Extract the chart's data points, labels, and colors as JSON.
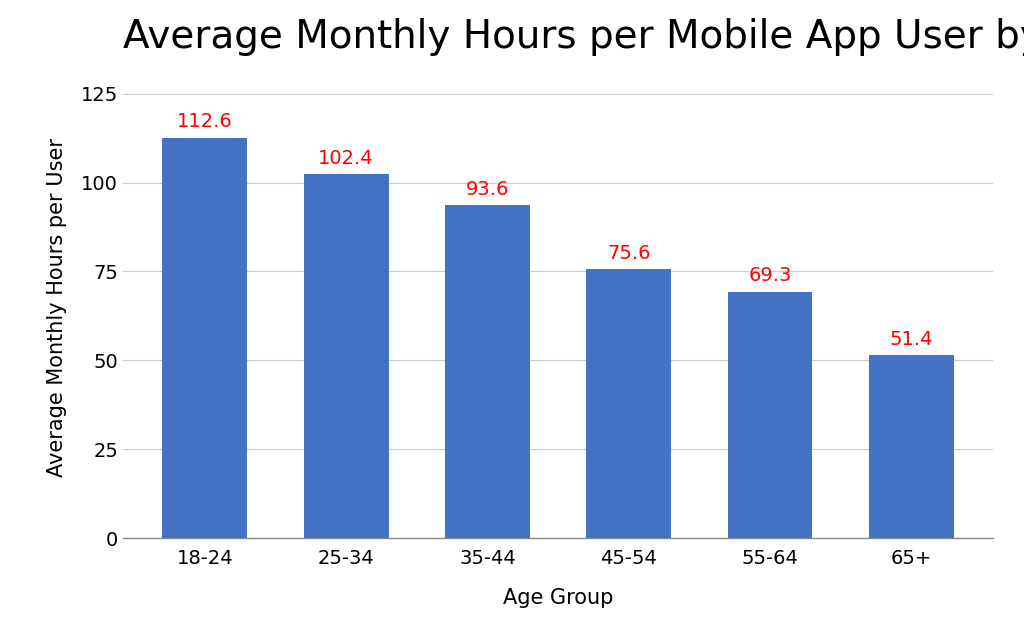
{
  "title": "Average Monthly Hours per Mobile App User by Age",
  "xlabel": "Age Group",
  "ylabel": "Average Monthly Hours per User",
  "categories": [
    "18-24",
    "25-34",
    "35-44",
    "45-54",
    "55-64",
    "65+"
  ],
  "values": [
    112.6,
    102.4,
    93.6,
    75.6,
    69.3,
    51.4
  ],
  "bar_color": "#4472C4",
  "label_color": "#FF0000",
  "background_color": "#FFFFFF",
  "ylim": [
    0,
    130
  ],
  "yticks": [
    0,
    25,
    50,
    75,
    100,
    125
  ],
  "title_fontsize": 28,
  "axis_label_fontsize": 15,
  "tick_fontsize": 14,
  "value_label_fontsize": 14,
  "grid_color": "#CCCCCC",
  "bar_width": 0.6
}
